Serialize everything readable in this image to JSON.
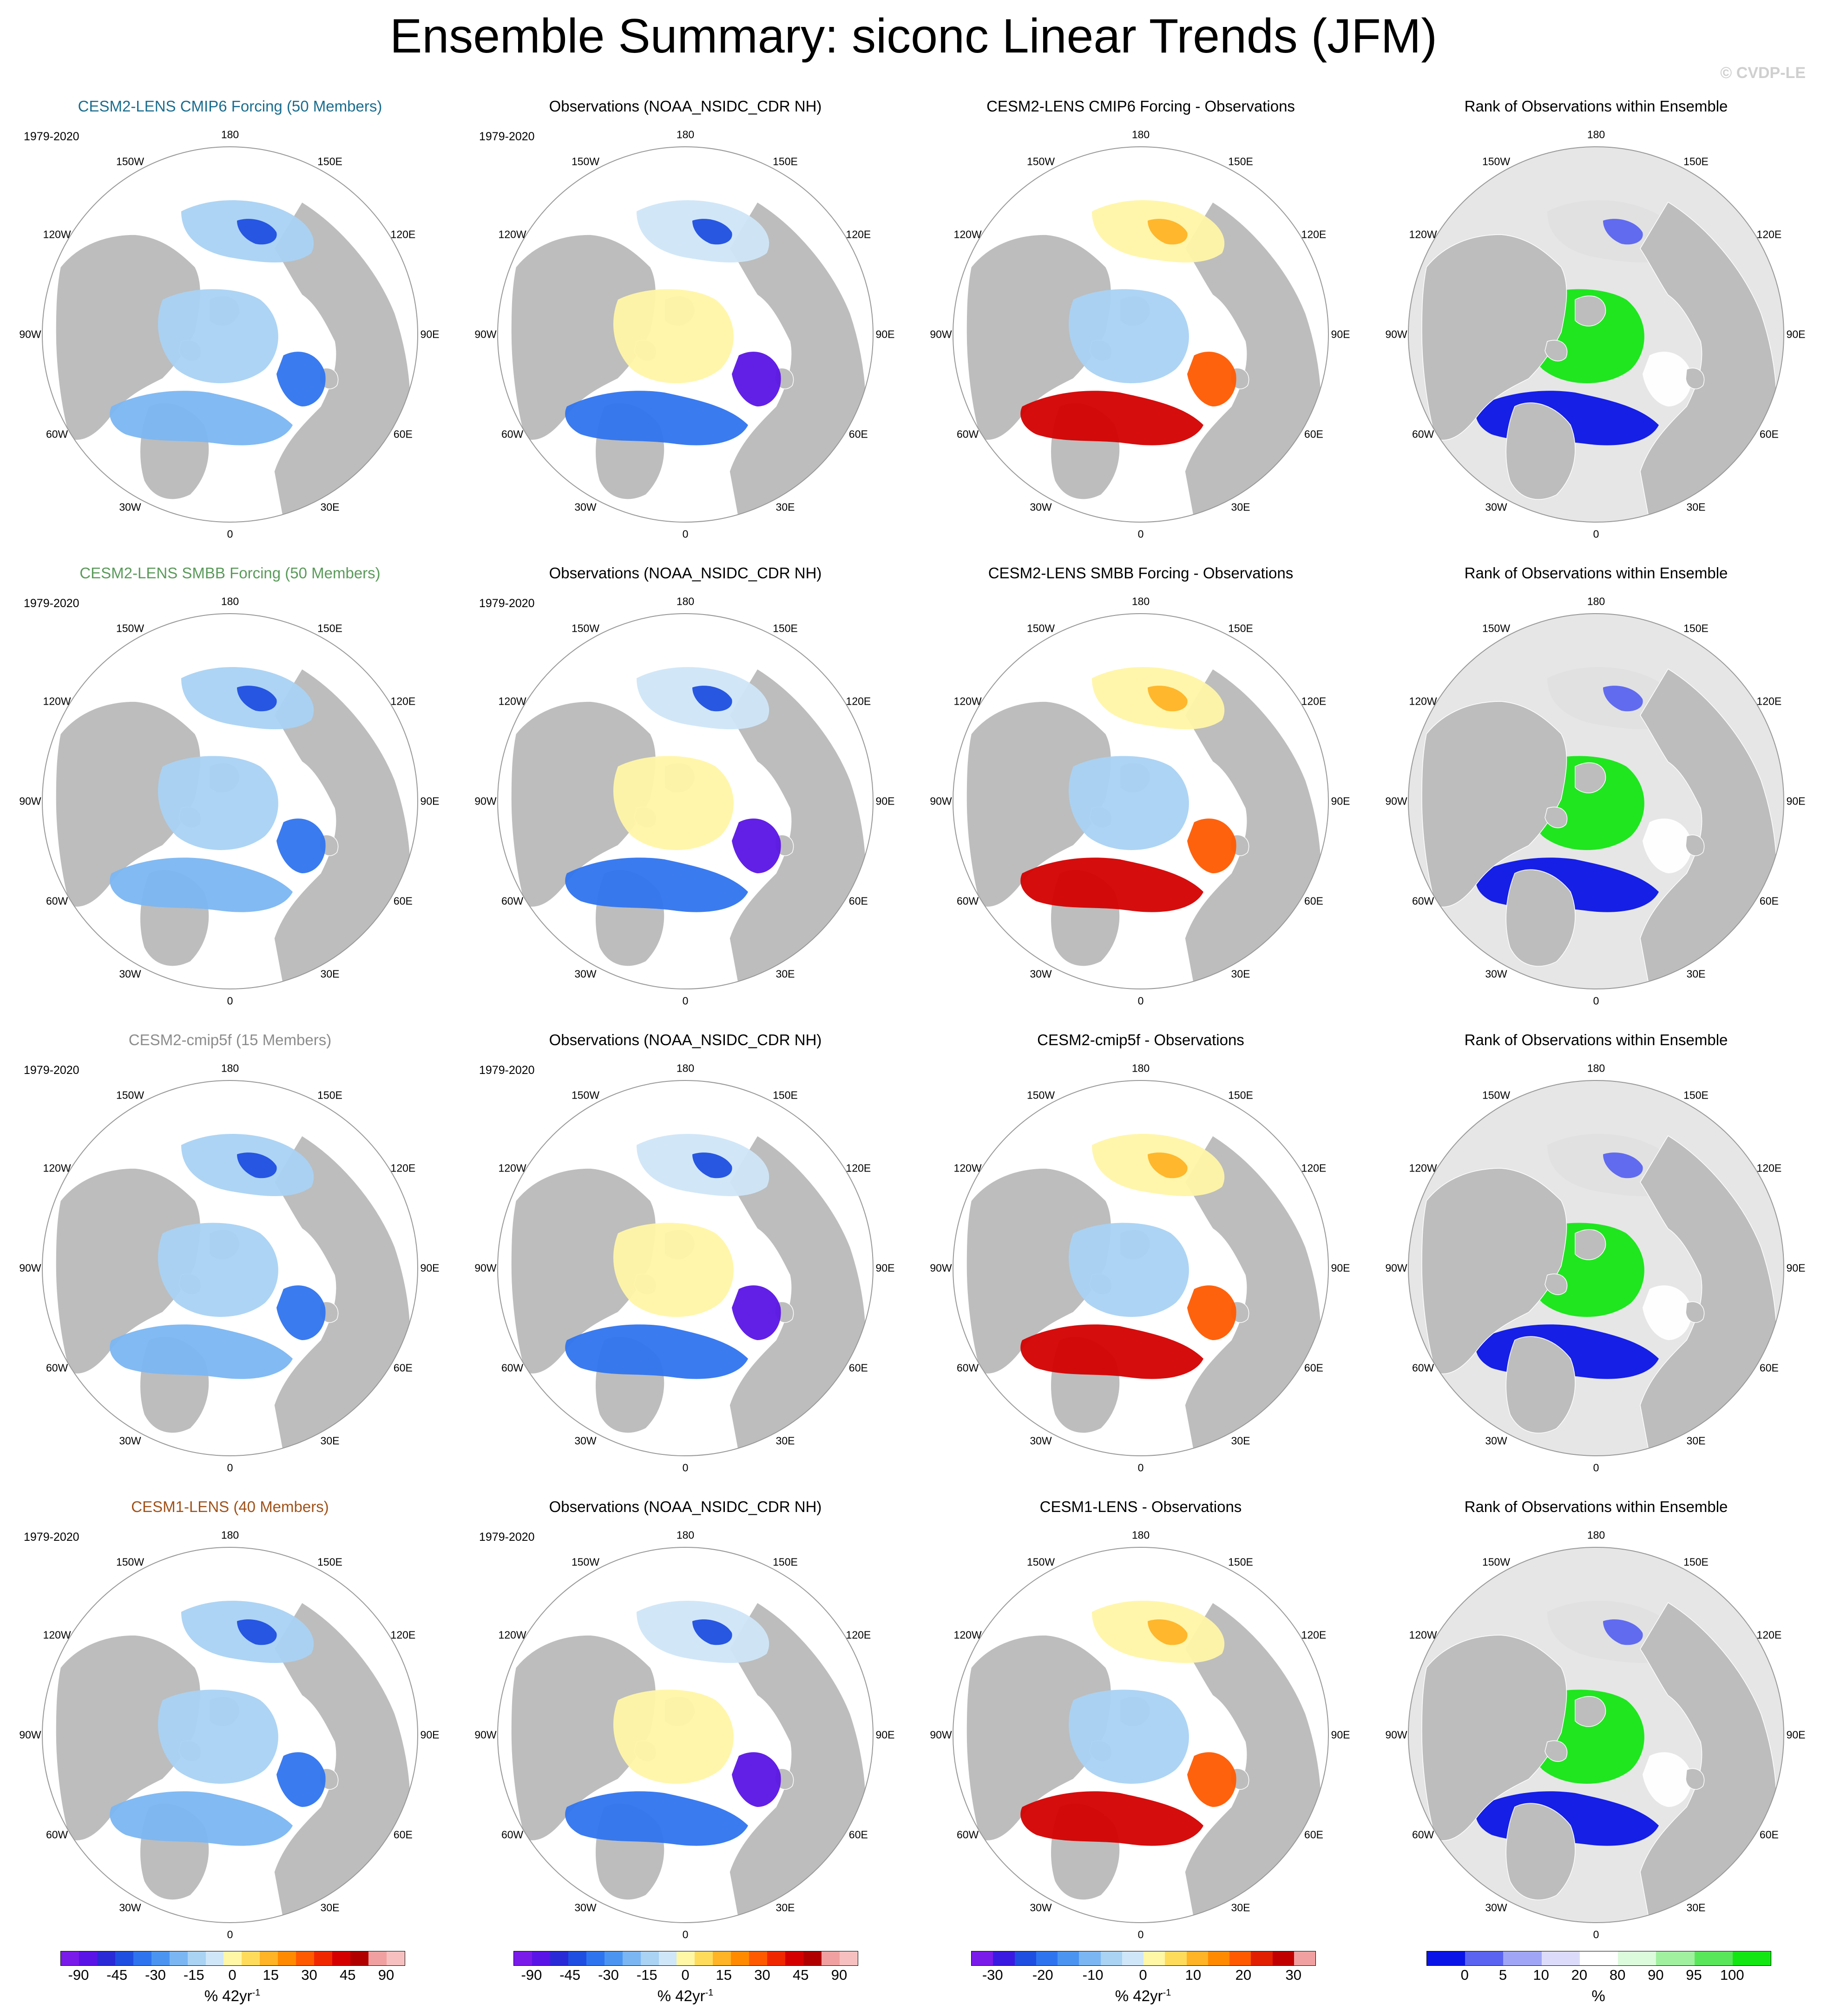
{
  "title": "Ensemble Summary: siconc Linear Trends (JFM)",
  "watermark": "© CVDP-LE",
  "period_label": "1979-2020",
  "longitude_labels": [
    "180",
    "150E",
    "120E",
    "90E",
    "60E",
    "30E",
    "0",
    "30W",
    "60W",
    "90W",
    "120W",
    "150W"
  ],
  "rows": [
    {
      "ensemble_title": "CESM2-LENS CMIP6 Forcing (50 Members)",
      "ensemble_color": "#1a6d8f",
      "obs_title": "Observations (NOAA_NSIDC_CDR NH)",
      "diff_title": "CESM2-LENS CMIP6 Forcing - Observations",
      "rank_title": "Rank of Observations within Ensemble"
    },
    {
      "ensemble_title": "CESM2-LENS SMBB Forcing (50 Members)",
      "ensemble_color": "#5a9a5a",
      "obs_title": "Observations (NOAA_NSIDC_CDR NH)",
      "diff_title": "CESM2-LENS SMBB Forcing - Observations",
      "rank_title": "Rank of Observations within Ensemble"
    },
    {
      "ensemble_title": "CESM2-cmip5f (15 Members)",
      "ensemble_color": "#8c8c8c",
      "obs_title": "Observations (NOAA_NSIDC_CDR NH)",
      "diff_title": "CESM2-cmip5f - Observations",
      "rank_title": "Rank of Observations within Ensemble"
    },
    {
      "ensemble_title": "CESM1-LENS (40 Members)",
      "ensemble_color": "#a0521a",
      "obs_title": "Observations (NOAA_NSIDC_CDR NH)",
      "diff_title": "CESM1-LENS - Observations",
      "rank_title": "Rank of Observations within Ensemble"
    }
  ],
  "colorbars": {
    "trend": {
      "ticks": [
        "-90",
        "-45",
        "-30",
        "-15",
        "0",
        "15",
        "30",
        "45",
        "90"
      ],
      "label": "% 42yr",
      "label_sup": "-1",
      "colors": [
        "#7a1bea",
        "#5a14e6",
        "#2a2ad6",
        "#1f4fe0",
        "#2f74ef",
        "#4b95f0",
        "#7bb6f2",
        "#a9d2f3",
        "#cfe6f8",
        "#fff6a6",
        "#ffdb5c",
        "#ffb326",
        "#ff8a00",
        "#ff5a00",
        "#f02800",
        "#d40000",
        "#b00000",
        "#f0a0a0",
        "#f7c0c0"
      ]
    },
    "diff": {
      "ticks": [
        "-30",
        "-20",
        "-10",
        "0",
        "10",
        "20",
        "30"
      ],
      "label": "% 42yr",
      "label_sup": "-1",
      "colors": [
        "#7a1bea",
        "#3a1ae0",
        "#1f4fe0",
        "#2f74ef",
        "#4b95f0",
        "#7bb6f2",
        "#a9d2f3",
        "#cfe6f8",
        "#fff6a6",
        "#ffdb5c",
        "#ffb326",
        "#ff8a00",
        "#ff5a00",
        "#e02000",
        "#c00000",
        "#f0a0a0"
      ]
    },
    "rank": {
      "ticks": [
        "0",
        "5",
        "10",
        "20",
        "80",
        "90",
        "95",
        "100"
      ],
      "label": "%",
      "colors": [
        "#0a14e6",
        "#5a64f0",
        "#a0a6f5",
        "#dcdcfa",
        "#ffffff",
        "#dcfadc",
        "#a0f0a0",
        "#5ae65a",
        "#14e614"
      ]
    }
  }
}
